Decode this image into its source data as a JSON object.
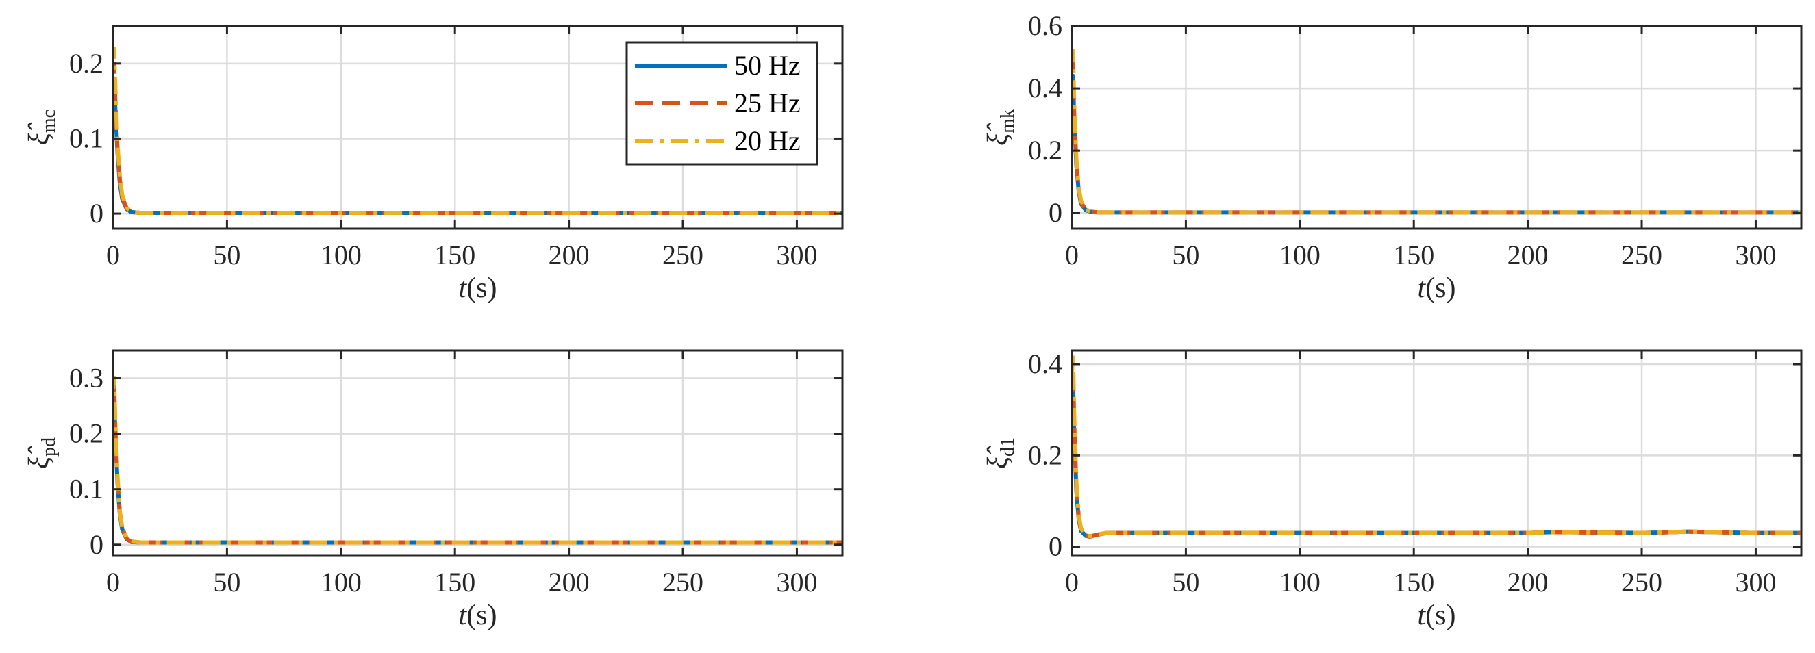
{
  "chart_data": [
    {
      "type": "line",
      "xlabel": {
        "var": "t",
        "unit": "(s)"
      },
      "ylabel": {
        "base": "ξ̂",
        "sub": "mc"
      },
      "xlim": [
        0,
        320
      ],
      "ylim": [
        -0.02,
        0.25
      ],
      "xticks": [
        0,
        50,
        100,
        150,
        200,
        250,
        300
      ],
      "yticks": [
        0,
        0.1,
        0.2
      ],
      "ytick_labels": [
        "0",
        "0.1",
        "0.2"
      ],
      "grid": true,
      "legend": "top-right",
      "series": [
        {
          "name": "50 Hz",
          "color": "#0072BD",
          "dash": "solid",
          "x": [
            0,
            0.5,
            1,
            2,
            3,
            4,
            6,
            8,
            12,
            20,
            50,
            100,
            150,
            200,
            250,
            300,
            320
          ],
          "y": [
            0.16,
            0.18,
            0.14,
            0.08,
            0.04,
            0.02,
            0.006,
            0.002,
            0.001,
            0.001,
            0.001,
            0.001,
            0.001,
            0.001,
            0.001,
            0.001,
            0.001
          ]
        },
        {
          "name": "25 Hz",
          "color": "#D95319",
          "dash": "dashed",
          "x": [
            0,
            0.5,
            1,
            2,
            3,
            4,
            6,
            8,
            12,
            20,
            50,
            100,
            150,
            200,
            250,
            300,
            320
          ],
          "y": [
            0.19,
            0.2,
            0.15,
            0.085,
            0.045,
            0.022,
            0.007,
            0.002,
            0.001,
            0.001,
            0.001,
            0.001,
            0.001,
            0.001,
            0.001,
            0.001,
            0.001
          ]
        },
        {
          "name": "20 Hz",
          "color": "#EDB120",
          "dash": "dashdot",
          "x": [
            0,
            0.5,
            1,
            2,
            3,
            4,
            6,
            8,
            12,
            20,
            50,
            100,
            150,
            200,
            250,
            300,
            320
          ],
          "y": [
            0.21,
            0.22,
            0.17,
            0.09,
            0.05,
            0.025,
            0.008,
            0.002,
            0.001,
            0.001,
            0.001,
            0.001,
            0.001,
            0.001,
            0.001,
            0.001,
            0.001
          ]
        }
      ]
    },
    {
      "type": "line",
      "xlabel": {
        "var": "t",
        "unit": "(s)"
      },
      "ylabel": {
        "base": "ξ̂",
        "sub": "mk"
      },
      "xlim": [
        0,
        320
      ],
      "ylim": [
        -0.05,
        0.6
      ],
      "xticks": [
        0,
        50,
        100,
        150,
        200,
        250,
        300
      ],
      "yticks": [
        0,
        0.2,
        0.4,
        0.6
      ],
      "ytick_labels": [
        "0",
        "0.2",
        "0.4",
        "0.6"
      ],
      "grid": true,
      "series": [
        {
          "name": "50 Hz",
          "color": "#0072BD",
          "dash": "solid",
          "x": [
            0,
            0.5,
            1,
            2,
            3,
            4,
            6,
            8,
            12,
            20,
            50,
            100,
            150,
            200,
            250,
            300,
            320
          ],
          "y": [
            0.4,
            0.44,
            0.3,
            0.15,
            0.07,
            0.03,
            0.01,
            0.004,
            0.002,
            0.002,
            0.002,
            0.002,
            0.002,
            0.002,
            0.002,
            0.002,
            0.002
          ]
        },
        {
          "name": "25 Hz",
          "color": "#D95319",
          "dash": "dashed",
          "x": [
            0,
            0.5,
            1,
            2,
            3,
            4,
            6,
            8,
            12,
            20,
            50,
            100,
            150,
            200,
            250,
            300,
            320
          ],
          "y": [
            0.45,
            0.48,
            0.32,
            0.16,
            0.075,
            0.035,
            0.011,
            0.004,
            0.002,
            0.002,
            0.002,
            0.002,
            0.002,
            0.002,
            0.002,
            0.002,
            0.002
          ]
        },
        {
          "name": "20 Hz",
          "color": "#EDB120",
          "dash": "dashdot",
          "x": [
            0,
            0.5,
            1,
            2,
            3,
            4,
            6,
            8,
            12,
            20,
            50,
            100,
            150,
            200,
            250,
            300,
            320
          ],
          "y": [
            0.5,
            0.52,
            0.35,
            0.17,
            0.08,
            0.04,
            0.012,
            0.005,
            0.002,
            0.002,
            0.002,
            0.002,
            0.002,
            0.002,
            0.002,
            0.002,
            0.002
          ]
        }
      ]
    },
    {
      "type": "line",
      "xlabel": {
        "var": "t",
        "unit": "(s)"
      },
      "ylabel": {
        "base": "ξ̂",
        "sub": "pd"
      },
      "xlim": [
        0,
        320
      ],
      "ylim": [
        -0.02,
        0.35
      ],
      "xticks": [
        0,
        50,
        100,
        150,
        200,
        250,
        300
      ],
      "yticks": [
        0,
        0.1,
        0.2,
        0.3
      ],
      "ytick_labels": [
        "0",
        "0.1",
        "0.2",
        "0.3"
      ],
      "grid": true,
      "series": [
        {
          "name": "50 Hz",
          "color": "#0072BD",
          "dash": "solid",
          "x": [
            0,
            0.5,
            1,
            2,
            3,
            4,
            6,
            8,
            12,
            20,
            50,
            100,
            150,
            200,
            250,
            300,
            320
          ],
          "y": [
            0.24,
            0.27,
            0.2,
            0.11,
            0.055,
            0.028,
            0.01,
            0.005,
            0.004,
            0.004,
            0.004,
            0.004,
            0.004,
            0.004,
            0.004,
            0.004,
            0.004
          ]
        },
        {
          "name": "25 Hz",
          "color": "#D95319",
          "dash": "dashed",
          "x": [
            0,
            0.5,
            1,
            2,
            3,
            4,
            6,
            8,
            12,
            20,
            50,
            100,
            150,
            200,
            250,
            300,
            320
          ],
          "y": [
            0.26,
            0.29,
            0.21,
            0.115,
            0.058,
            0.03,
            0.011,
            0.005,
            0.004,
            0.004,
            0.004,
            0.004,
            0.004,
            0.004,
            0.004,
            0.004,
            0.004
          ]
        },
        {
          "name": "20 Hz",
          "color": "#EDB120",
          "dash": "dashdot",
          "x": [
            0,
            0.5,
            1,
            2,
            3,
            4,
            6,
            8,
            12,
            20,
            50,
            100,
            150,
            200,
            250,
            300,
            320
          ],
          "y": [
            0.28,
            0.3,
            0.22,
            0.12,
            0.06,
            0.032,
            0.012,
            0.006,
            0.004,
            0.004,
            0.004,
            0.004,
            0.004,
            0.004,
            0.004,
            0.004,
            0.004
          ]
        }
      ]
    },
    {
      "type": "line",
      "xlabel": {
        "var": "t",
        "unit": "(s)"
      },
      "ylabel": {
        "base": "ξ̂",
        "sub": "d1"
      },
      "xlim": [
        0,
        320
      ],
      "ylim": [
        -0.02,
        0.43
      ],
      "xticks": [
        0,
        50,
        100,
        150,
        200,
        250,
        300
      ],
      "yticks": [
        0,
        0.2,
        0.4
      ],
      "ytick_labels": [
        "0",
        "0.2",
        "0.4"
      ],
      "grid": true,
      "series": [
        {
          "name": "50 Hz",
          "color": "#0072BD",
          "dash": "solid",
          "x": [
            0,
            0.5,
            1,
            2,
            3,
            4,
            6,
            8,
            10,
            15,
            20,
            50,
            100,
            150,
            200,
            210,
            250,
            270,
            300,
            320
          ],
          "y": [
            0.3,
            0.36,
            0.25,
            0.12,
            0.06,
            0.035,
            0.024,
            0.022,
            0.025,
            0.03,
            0.03,
            0.03,
            0.03,
            0.03,
            0.03,
            0.032,
            0.03,
            0.033,
            0.03,
            0.03
          ]
        },
        {
          "name": "25 Hz",
          "color": "#D95319",
          "dash": "dashed",
          "x": [
            0,
            0.5,
            1,
            2,
            3,
            4,
            6,
            8,
            10,
            15,
            20,
            50,
            100,
            150,
            200,
            210,
            250,
            270,
            300,
            320
          ],
          "y": [
            0.34,
            0.39,
            0.27,
            0.13,
            0.065,
            0.037,
            0.025,
            0.022,
            0.025,
            0.03,
            0.03,
            0.03,
            0.03,
            0.03,
            0.03,
            0.032,
            0.03,
            0.033,
            0.03,
            0.03
          ]
        },
        {
          "name": "20 Hz",
          "color": "#EDB120",
          "dash": "dashdot",
          "x": [
            0,
            0.5,
            1,
            2,
            3,
            4,
            6,
            8,
            10,
            15,
            20,
            50,
            100,
            150,
            200,
            210,
            250,
            270,
            300,
            320
          ],
          "y": [
            0.38,
            0.42,
            0.29,
            0.14,
            0.07,
            0.04,
            0.026,
            0.023,
            0.026,
            0.03,
            0.03,
            0.03,
            0.03,
            0.03,
            0.03,
            0.032,
            0.03,
            0.033,
            0.03,
            0.03
          ]
        }
      ]
    }
  ]
}
